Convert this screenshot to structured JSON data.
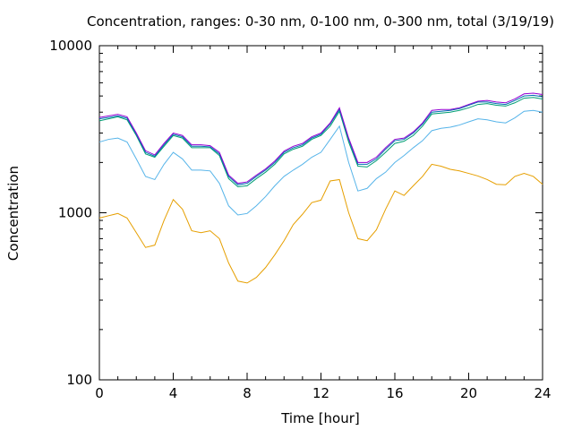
{
  "chart_data": {
    "type": "line",
    "title": "Concentration, ranges: 0-30 nm, 0-100 nm, 0-300 nm, total (3/19/19)",
    "xlabel": "Time [hour]",
    "ylabel": "Concentration",
    "xlim": [
      0,
      24
    ],
    "ylim": [
      100,
      10000
    ],
    "yscale": "log",
    "grid": false,
    "legend": "none",
    "x_ticks": [
      "0",
      "4",
      "8",
      "12",
      "16",
      "20",
      "24"
    ],
    "y_ticks": [
      "100",
      "1000",
      "10000"
    ],
    "x": [
      0,
      0.5,
      1,
      1.5,
      2,
      2.5,
      3,
      3.5,
      4,
      4.5,
      5,
      5.5,
      6,
      6.5,
      7,
      7.5,
      8,
      8.5,
      9,
      9.5,
      10,
      10.5,
      11,
      11.5,
      12,
      12.5,
      13,
      13.5,
      14,
      14.5,
      15,
      15.5,
      16,
      16.5,
      17,
      17.5,
      18,
      18.5,
      19,
      19.5,
      20,
      20.5,
      21,
      21.5,
      22,
      22.5,
      23,
      23.5,
      24
    ],
    "series": [
      {
        "color": "#E69F00",
        "values": [
          930,
          960,
          990,
          930,
          760,
          620,
          640,
          900,
          1200,
          1050,
          780,
          760,
          780,
          700,
          500,
          390,
          380,
          410,
          470,
          560,
          680,
          850,
          980,
          1150,
          1190,
          1550,
          1580,
          1000,
          700,
          680,
          790,
          1050,
          1350,
          1270,
          1450,
          1650,
          1950,
          1900,
          1820,
          1780,
          1720,
          1660,
          1580,
          1480,
          1470,
          1650,
          1720,
          1650,
          1480
        ]
      },
      {
        "color": "#56B4E9",
        "values": [
          2650,
          2750,
          2800,
          2650,
          2100,
          1650,
          1580,
          1950,
          2300,
          2100,
          1800,
          1800,
          1780,
          1500,
          1100,
          970,
          990,
          1100,
          1250,
          1450,
          1650,
          1800,
          1950,
          2150,
          2300,
          2750,
          3300,
          2000,
          1350,
          1400,
          1600,
          1750,
          2000,
          2200,
          2450,
          2700,
          3100,
          3200,
          3250,
          3350,
          3500,
          3650,
          3600,
          3500,
          3450,
          3700,
          4050,
          4100,
          4000
        ]
      },
      {
        "color": "#009E73",
        "values": [
          3550,
          3650,
          3750,
          3600,
          2900,
          2250,
          2150,
          2500,
          2900,
          2800,
          2450,
          2450,
          2450,
          2200,
          1600,
          1430,
          1450,
          1600,
          1750,
          1950,
          2250,
          2400,
          2500,
          2750,
          2900,
          3300,
          4050,
          2650,
          1900,
          1880,
          2050,
          2300,
          2600,
          2680,
          2900,
          3300,
          3900,
          3950,
          4000,
          4100,
          4250,
          4450,
          4500,
          4400,
          4350,
          4550,
          4850,
          4900,
          4800
        ]
      },
      {
        "color": "#0072B2",
        "values": [
          3650,
          3720,
          3800,
          3680,
          2950,
          2300,
          2180,
          2550,
          2950,
          2850,
          2500,
          2500,
          2480,
          2250,
          1650,
          1470,
          1500,
          1650,
          1800,
          2000,
          2300,
          2450,
          2550,
          2800,
          2950,
          3400,
          4150,
          2750,
          1950,
          1950,
          2100,
          2400,
          2700,
          2750,
          3000,
          3400,
          4000,
          4050,
          4100,
          4200,
          4400,
          4600,
          4600,
          4500,
          4450,
          4700,
          5000,
          5050,
          4950
        ]
      },
      {
        "color": "#9400D3",
        "values": [
          3720,
          3800,
          3880,
          3750,
          3000,
          2350,
          2220,
          2600,
          3000,
          2900,
          2550,
          2550,
          2520,
          2300,
          1680,
          1500,
          1530,
          1680,
          1830,
          2040,
          2340,
          2500,
          2600,
          2850,
          3000,
          3450,
          4250,
          2800,
          2000,
          2000,
          2150,
          2450,
          2750,
          2800,
          3050,
          3450,
          4100,
          4150,
          4150,
          4250,
          4450,
          4650,
          4700,
          4600,
          4550,
          4800,
          5150,
          5200,
          5100
        ]
      }
    ]
  }
}
